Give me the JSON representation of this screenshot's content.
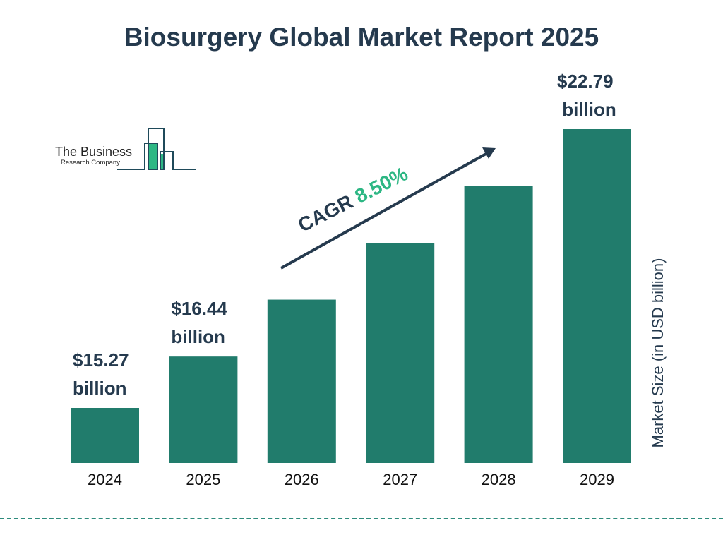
{
  "chart_data": {
    "type": "bar",
    "title": "Biosurgery Global Market Report 2025",
    "categories": [
      "2024",
      "2025",
      "2026",
      "2027",
      "2028",
      "2029"
    ],
    "values": [
      15.27,
      16.44,
      17.84,
      19.35,
      21.0,
      22.79
    ],
    "value_labels": [
      "$15.27 billion",
      "$16.44 billion",
      null,
      null,
      null,
      "$22.79 billion"
    ],
    "value_labels_lines": [
      [
        "$15.27",
        "billion"
      ],
      [
        "$16.44",
        "billion"
      ],
      null,
      null,
      null,
      [
        "$22.79",
        " billion"
      ]
    ],
    "ylabel": "Market Size (in USD billion)",
    "xlabel": "",
    "bar_color": "#217c6c",
    "grid": false,
    "annotation": {
      "label": "CAGR",
      "value": "8.50%",
      "value_color": "#2db784"
    }
  },
  "logo": {
    "line1": "The Business",
    "line2": "Research Company"
  }
}
